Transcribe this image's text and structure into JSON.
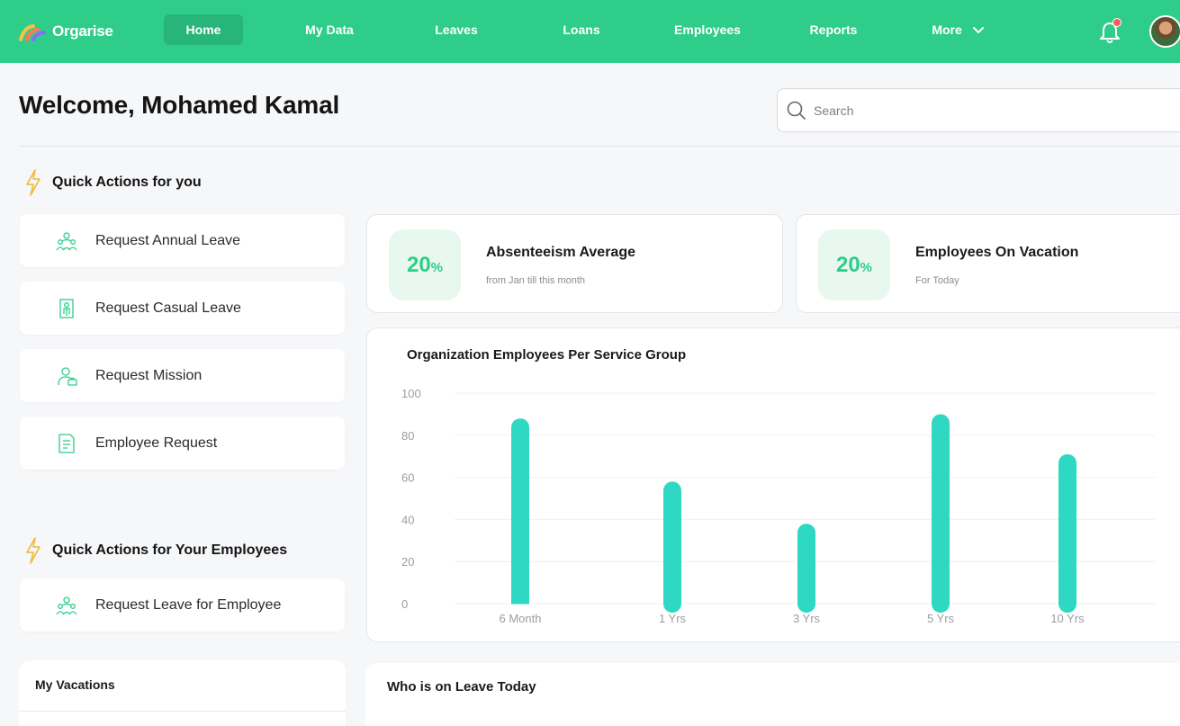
{
  "brand": {
    "name": "Orgarise"
  },
  "nav": {
    "items": [
      {
        "label": "Home"
      },
      {
        "label": "My Data"
      },
      {
        "label": "Leaves"
      },
      {
        "label": "Loans"
      },
      {
        "label": "Employees"
      },
      {
        "label": "Reports"
      },
      {
        "label": "More"
      }
    ],
    "active": "Home"
  },
  "header": {
    "welcome": "Welcome, Mohamed Kamal",
    "search_placeholder": "Search"
  },
  "quick_actions": {
    "title": "Quick Actions for you",
    "items": [
      {
        "label": "Request Annual Leave",
        "icon": "people-group-icon"
      },
      {
        "label": "Request Casual Leave",
        "icon": "door-person-icon"
      },
      {
        "label": "Request Mission",
        "icon": "person-briefcase-icon"
      },
      {
        "label": "Employee Request",
        "icon": "document-icon"
      }
    ]
  },
  "employee_actions": {
    "title": "Quick Actions for Your Employees",
    "items": [
      {
        "label": "Request Leave for Employee",
        "icon": "people-group-icon"
      }
    ]
  },
  "stats": [
    {
      "value": "20",
      "unit": "%",
      "title": "Absenteeism Average",
      "subtitle": "from Jan till this month"
    },
    {
      "value": "20",
      "unit": "%",
      "title": "Employees On Vacation",
      "subtitle": "For Today"
    }
  ],
  "chart_data": {
    "type": "bar",
    "title": "Organization Employees Per Service Group",
    "categories": [
      "6 Month",
      "1 Yrs",
      "3 Yrs",
      "5 Yrs",
      "10 Yrs"
    ],
    "values": [
      88,
      58,
      38,
      90,
      71
    ],
    "ylim": [
      0,
      100
    ],
    "yticks": [
      0,
      20,
      40,
      60,
      80,
      100
    ],
    "grid": true,
    "bar_color": "#2ed8c3"
  },
  "vacations": {
    "title": "My Vacations"
  },
  "on_leave": {
    "title": "Who is on Leave Today"
  },
  "colors": {
    "brand": "#2fcd8a",
    "accent": "#2ed8c3",
    "notification": "#ff5a5f"
  }
}
